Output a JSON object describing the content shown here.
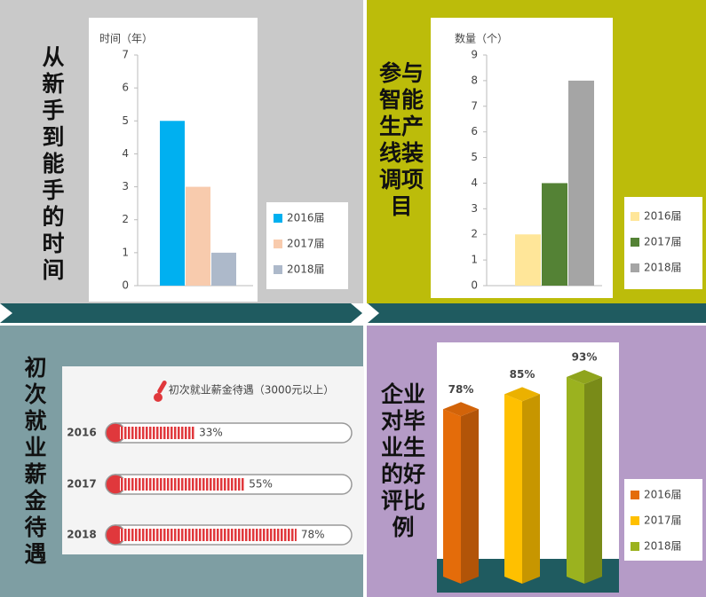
{
  "chart_data": [
    {
      "type": "bar",
      "title": "从新手到能手的时间",
      "y_label": "时间（年）",
      "ylim": [
        0,
        7
      ],
      "yticks": [
        0,
        1,
        2,
        3,
        4,
        5,
        6,
        7
      ],
      "series": [
        {
          "name": "2016届",
          "color": "#00b0f0",
          "values": [
            5
          ]
        },
        {
          "name": "2017届",
          "color": "#f8cbad",
          "values": [
            3
          ]
        },
        {
          "name": "2018届",
          "color": "#adb9ca",
          "values": [
            1
          ]
        }
      ]
    },
    {
      "type": "bar",
      "title": "参与智能生产线装调项目",
      "y_label": "数量（个）",
      "ylim": [
        0,
        9
      ],
      "yticks": [
        0,
        1,
        2,
        3,
        4,
        5,
        6,
        7,
        8,
        9
      ],
      "series": [
        {
          "name": "2016届",
          "color": "#ffe699",
          "values": [
            2
          ]
        },
        {
          "name": "2017届",
          "color": "#548235",
          "values": [
            4
          ]
        },
        {
          "name": "2018届",
          "color": "#a5a5a5",
          "values": [
            8
          ]
        }
      ]
    },
    {
      "type": "thermometer",
      "title": "初次就业薪金待遇",
      "subtitle": "初次就业薪金待遇（3000元以上）",
      "xlim": [
        0,
        100
      ],
      "color": "#e0383c",
      "categories": [
        "2016",
        "2017",
        "2018"
      ],
      "values": [
        33,
        55,
        78
      ],
      "value_labels": [
        "33%",
        "55%",
        "78%"
      ]
    },
    {
      "type": "bar3d",
      "title": "企业对毕业生的好评比例",
      "series": [
        {
          "name": "2016届",
          "color": "#e46c0a",
          "values": [
            78
          ],
          "value_labels": [
            "78%"
          ]
        },
        {
          "name": "2017届",
          "color": "#ffc000",
          "values": [
            85
          ],
          "value_labels": [
            "85%"
          ]
        },
        {
          "name": "2018届",
          "color": "#9bb21f",
          "values": [
            93
          ],
          "value_labels": [
            "93%"
          ]
        }
      ]
    }
  ]
}
